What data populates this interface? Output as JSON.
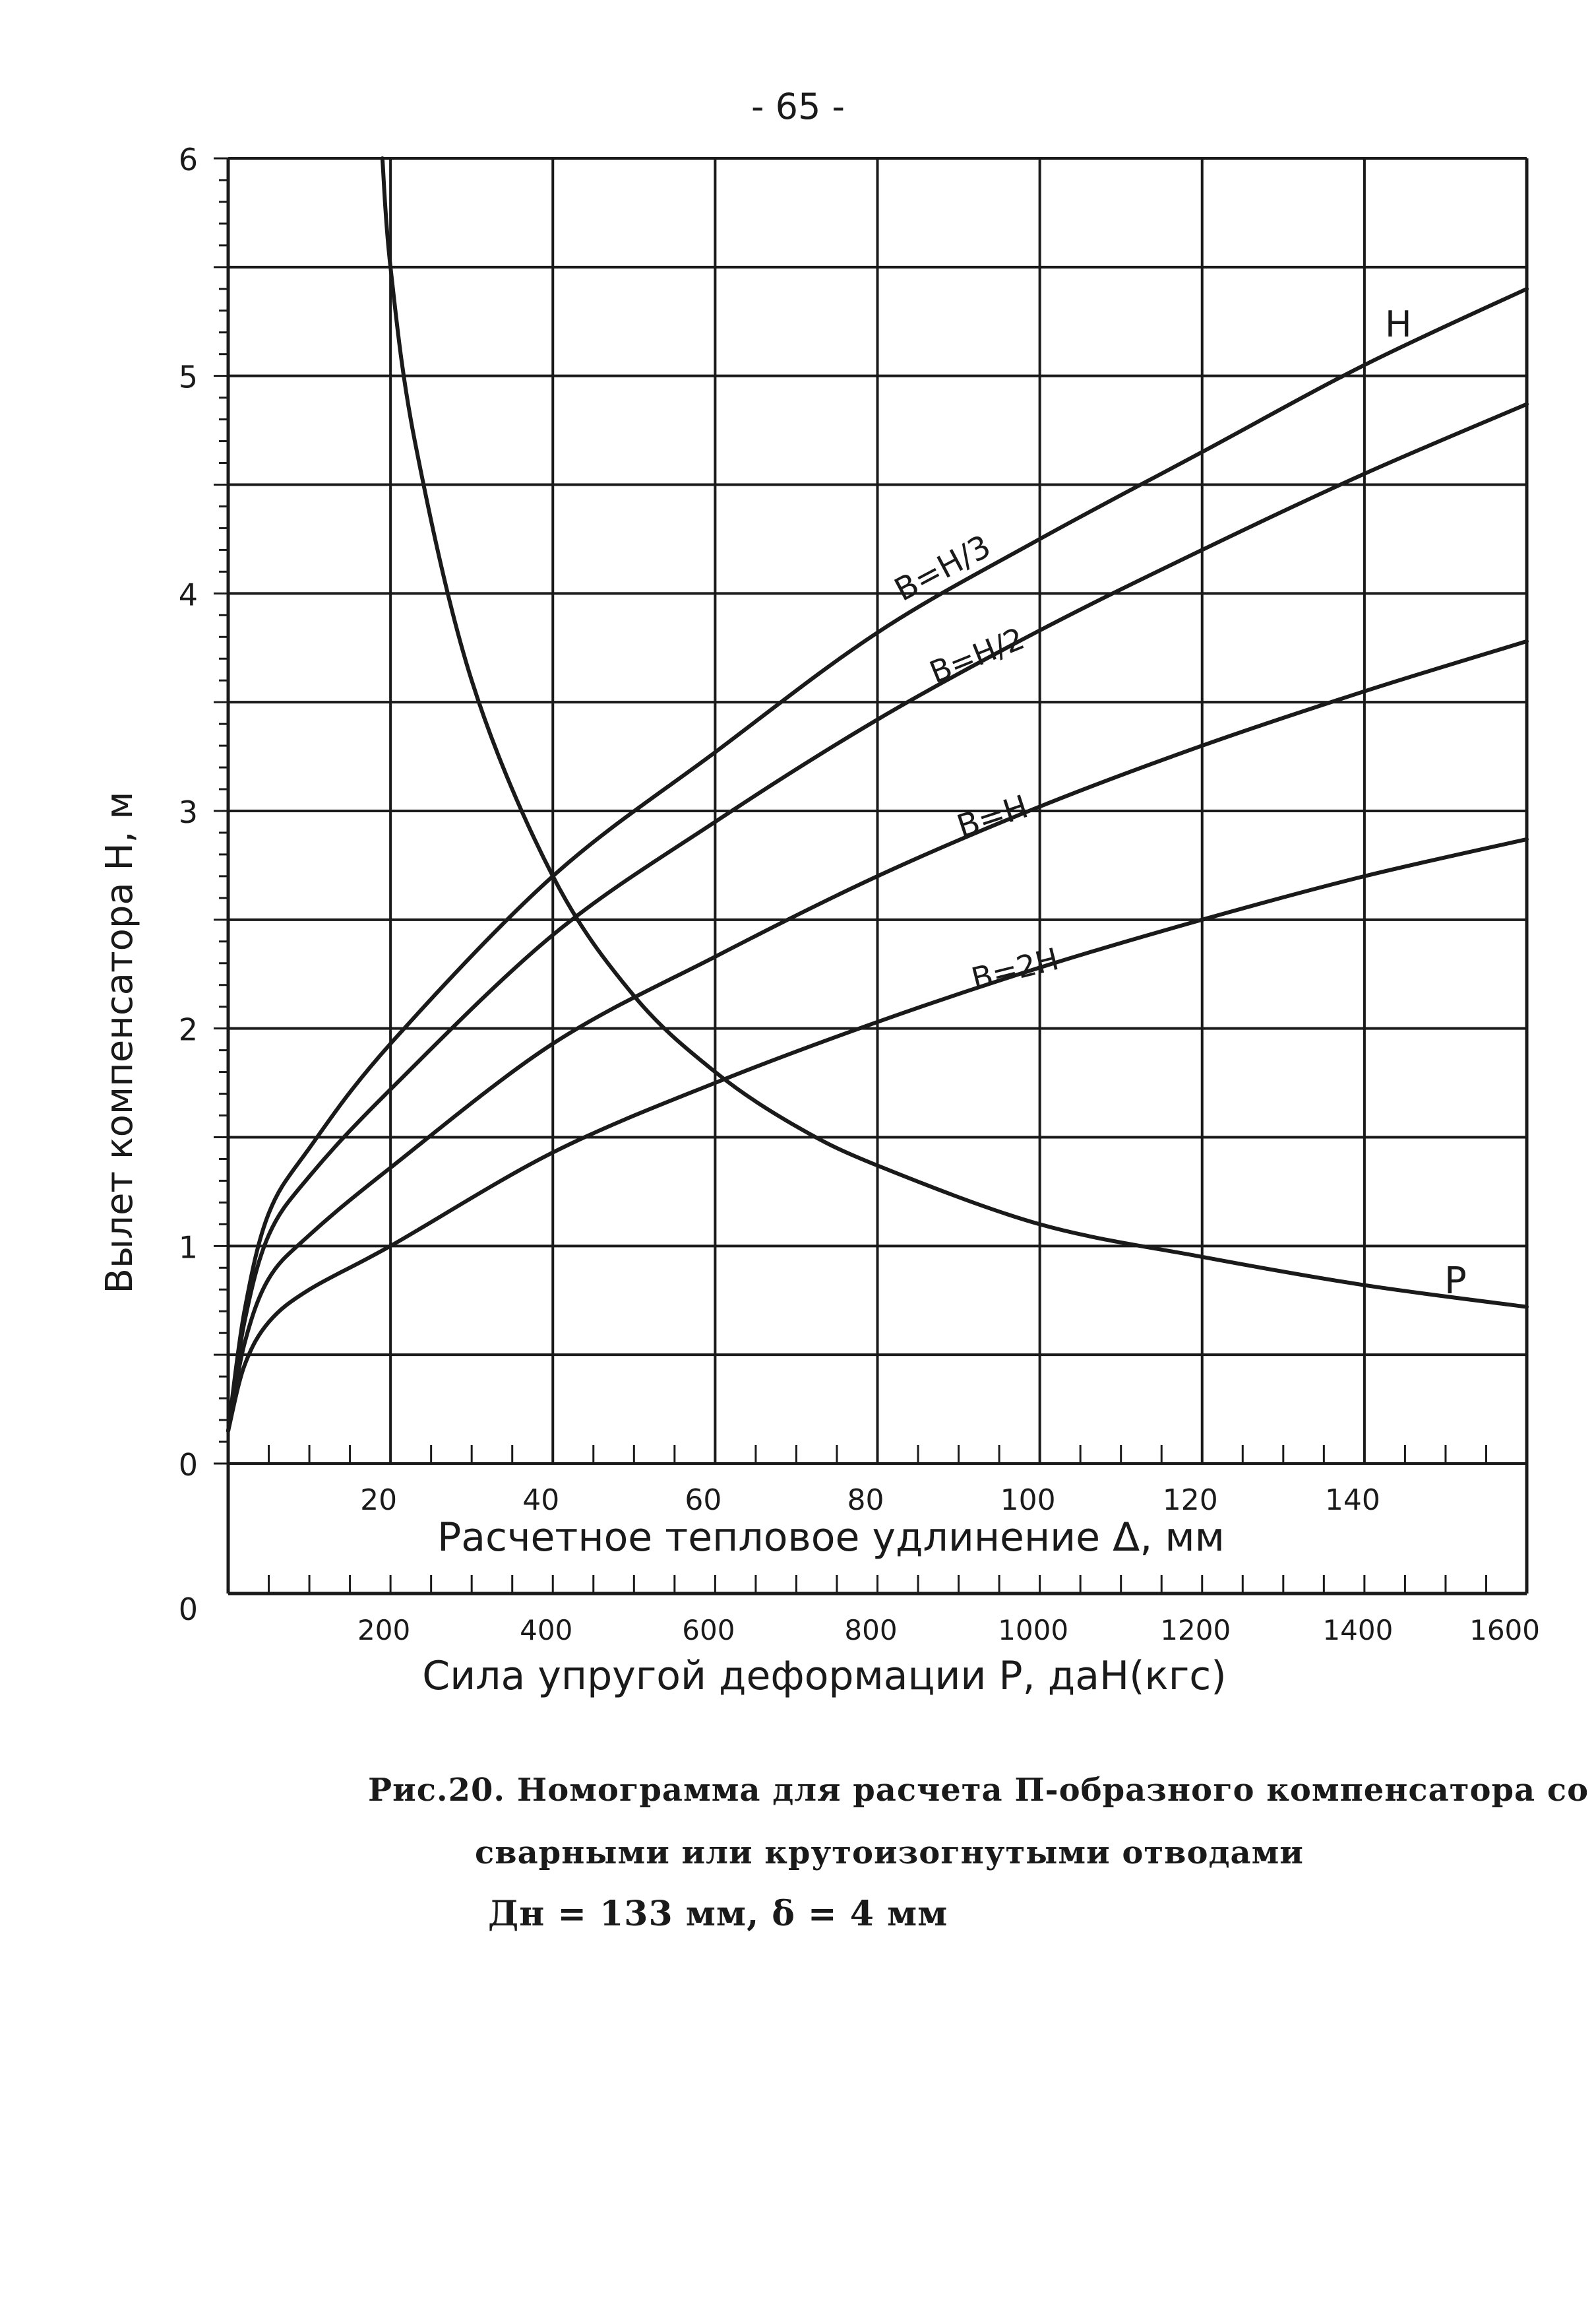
{
  "page_number": "- 65 -",
  "caption": {
    "line1": "Рис.20. Номограмма для расчета П-образного компенсатора со",
    "line2": "сварными или крутоизогнутыми отводами",
    "line3": "Дн = 133 мм, δ = 4 мм"
  },
  "chart_data": {
    "type": "line",
    "ylabel": "Вылет компенсатора  Н, м",
    "xlabel_top": "Расчетное тепловое удлинение Δ, мм",
    "xlabel_bottom": "Сила упругой деформации Р, даН(кгс)",
    "ylim": [
      0,
      6
    ],
    "xlim_top": [
      0,
      160
    ],
    "xlim_bottom": [
      0,
      1600
    ],
    "yticks": [
      "0",
      "1",
      "2",
      "3",
      "4",
      "5",
      "6"
    ],
    "xticks_top": [
      "20",
      "40",
      "60",
      "80",
      "100",
      "120",
      "140"
    ],
    "xticks_bottom_zero": "0",
    "xticks_bottom": [
      "200",
      "400",
      "600",
      "800",
      "1000",
      "1200",
      "1400",
      "1600"
    ],
    "grid": true,
    "series": [
      {
        "name": "H",
        "axis": "top",
        "x": [
          0,
          2,
          5,
          10,
          20,
          40,
          60,
          80,
          100,
          120,
          140,
          160
        ],
        "y": [
          0.15,
          0.7,
          1.15,
          1.45,
          1.93,
          2.7,
          3.27,
          3.82,
          4.25,
          4.65,
          5.05,
          5.4
        ]
      },
      {
        "name": "B=H/3",
        "axis": "top",
        "x": [
          0,
          2,
          5,
          10,
          20,
          40,
          60,
          80,
          100,
          120,
          140,
          160
        ],
        "y": [
          0.15,
          0.65,
          1.05,
          1.32,
          1.72,
          2.43,
          2.95,
          3.42,
          3.83,
          4.2,
          4.55,
          4.87
        ]
      },
      {
        "name": "B=H/2",
        "axis": "top",
        "x": [
          0,
          2,
          5,
          10,
          20,
          40,
          60,
          80,
          100,
          120,
          140,
          160
        ],
        "y": [
          0.15,
          0.55,
          0.85,
          1.05,
          1.36,
          1.93,
          2.33,
          2.7,
          3.02,
          3.3,
          3.55,
          3.78
        ]
      },
      {
        "name": "B=H",
        "axis": "top",
        "x": [
          0,
          2,
          5,
          10,
          20,
          40,
          60,
          80,
          100,
          120,
          140,
          160
        ],
        "y": [
          0.15,
          0.45,
          0.65,
          0.8,
          1.0,
          1.43,
          1.75,
          2.03,
          2.28,
          2.5,
          2.7,
          2.87
        ]
      },
      {
        "name": "P",
        "axis": "bottom",
        "x": [
          190,
          200,
          230,
          300,
          400,
          500,
          600,
          700,
          800,
          1000,
          1200,
          1400,
          1600
        ],
        "y": [
          6.0,
          5.5,
          4.7,
          3.6,
          2.7,
          2.15,
          1.8,
          1.55,
          1.37,
          1.1,
          0.95,
          0.82,
          0.72
        ]
      }
    ],
    "curve_labels": [
      "Н",
      "В=Н/3",
      "В=Н/2",
      "В=Н",
      "В=2Н",
      "Р"
    ]
  }
}
